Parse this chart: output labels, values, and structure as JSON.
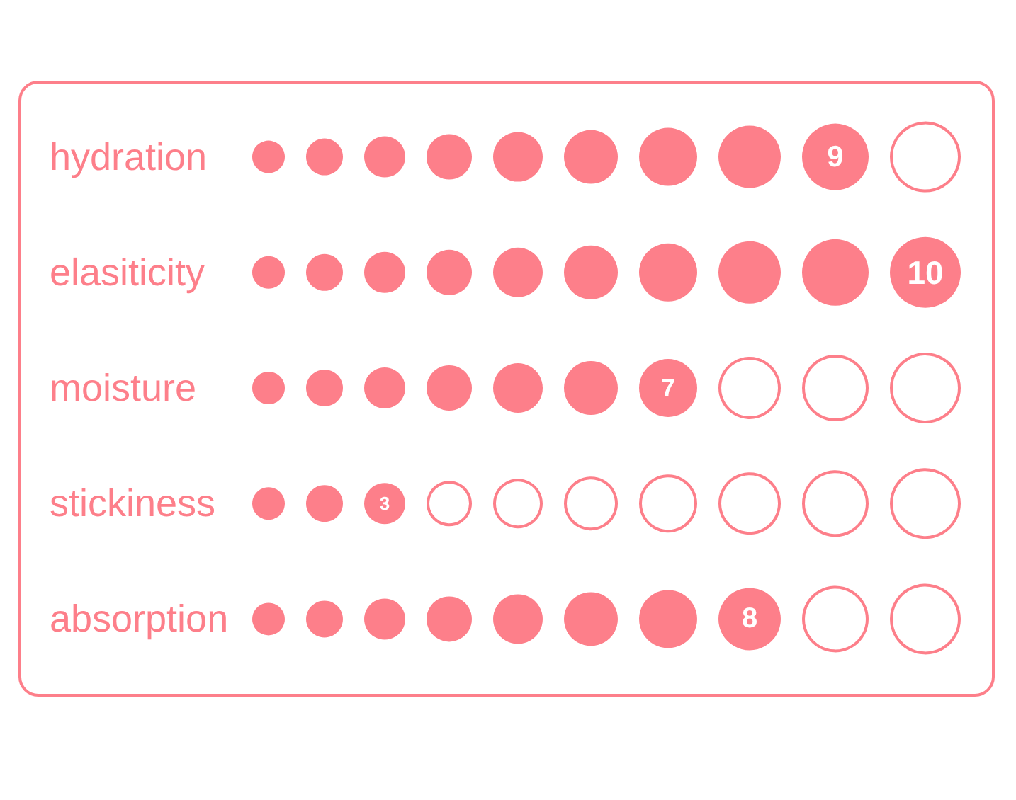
{
  "chart_data": {
    "type": "other",
    "categories": [
      "hydration",
      "elasiticity",
      "moisture",
      "stickiness",
      "absorption"
    ],
    "values": [
      9,
      10,
      7,
      3,
      8
    ],
    "color": "#fd7f8a",
    "data_labels": true
  }
}
